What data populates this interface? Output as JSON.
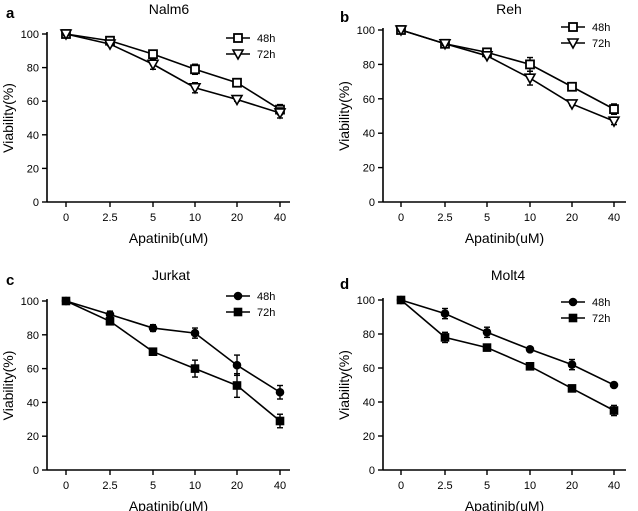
{
  "chart_data": [
    {
      "panel": "a",
      "type": "line",
      "title": "Nalm6",
      "xlabel": "Apatinib(uM)",
      "ylabel": "Viability(%)",
      "categories": [
        "0",
        "2.5",
        "5",
        "10",
        "20",
        "40"
      ],
      "yticks": [
        "0",
        "20",
        "40",
        "60",
        "80",
        "100"
      ],
      "ylim": [
        0,
        100
      ],
      "legend_position": "top-right",
      "series": [
        {
          "name": "48h",
          "marker": "square-open",
          "values": [
            100,
            96,
            88,
            79,
            71,
            55
          ],
          "errors": [
            1,
            1,
            2,
            3,
            2,
            3
          ]
        },
        {
          "name": "72h",
          "marker": "triangle-down-open",
          "values": [
            100,
            94,
            82,
            68,
            61,
            53
          ],
          "errors": [
            1,
            1,
            3,
            3,
            1,
            3
          ]
        }
      ]
    },
    {
      "panel": "b",
      "type": "line",
      "title": "Reh",
      "xlabel": "Apatinib(uM)",
      "ylabel": "Viability(%)",
      "categories": [
        "0",
        "2.5",
        "5",
        "10",
        "20",
        "40"
      ],
      "yticks": [
        "0",
        "20",
        "40",
        "60",
        "80",
        "100"
      ],
      "ylim": [
        0,
        100
      ],
      "legend_position": "top-right",
      "series": [
        {
          "name": "48h",
          "marker": "square-open",
          "values": [
            100,
            92,
            87,
            80,
            67,
            54
          ],
          "errors": [
            1,
            1,
            1,
            4,
            2,
            3
          ]
        },
        {
          "name": "72h",
          "marker": "triangle-down-open",
          "values": [
            100,
            92,
            85,
            72,
            57,
            47
          ],
          "errors": [
            1,
            1,
            1,
            4,
            1,
            2
          ]
        }
      ]
    },
    {
      "panel": "c",
      "type": "line",
      "title": "Jurkat",
      "xlabel": "Apatinib(uM)",
      "ylabel": "Viability(%)",
      "categories": [
        "0",
        "2.5",
        "5",
        "10",
        "20",
        "40"
      ],
      "yticks": [
        "0",
        "20",
        "40",
        "60",
        "80",
        "100"
      ],
      "ylim": [
        0,
        100
      ],
      "legend_position": "top-right",
      "series": [
        {
          "name": "48h",
          "marker": "circle-filled",
          "values": [
            100,
            92,
            84,
            81,
            62,
            46
          ],
          "errors": [
            1,
            2,
            2,
            3,
            6,
            4
          ]
        },
        {
          "name": "72h",
          "marker": "square-filled",
          "values": [
            100,
            88,
            70,
            60,
            50,
            29
          ],
          "errors": [
            1,
            2,
            2,
            5,
            7,
            4
          ]
        }
      ]
    },
    {
      "panel": "d",
      "type": "line",
      "title": "Molt4",
      "xlabel": "Apatinib(uM)",
      "ylabel": "Viability(%)",
      "categories": [
        "0",
        "2.5",
        "5",
        "10",
        "20",
        "40"
      ],
      "yticks": [
        "0",
        "20",
        "40",
        "60",
        "80",
        "100"
      ],
      "ylim": [
        0,
        100
      ],
      "legend_position": "top-right",
      "series": [
        {
          "name": "48h",
          "marker": "circle-filled",
          "values": [
            100,
            92,
            81,
            71,
            62,
            50
          ],
          "errors": [
            1,
            3,
            3,
            1,
            3,
            1
          ]
        },
        {
          "name": "72h",
          "marker": "square-filled",
          "values": [
            100,
            78,
            72,
            61,
            48,
            35
          ],
          "errors": [
            1,
            3,
            1,
            2,
            1,
            3
          ]
        }
      ]
    }
  ]
}
